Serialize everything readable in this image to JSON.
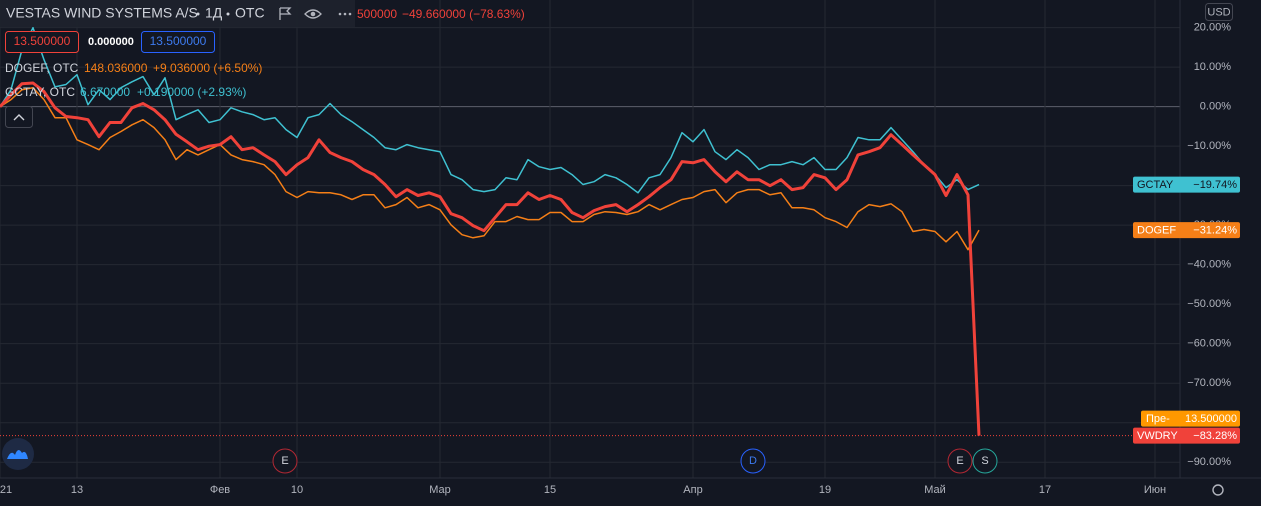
{
  "chart_data": {
    "type": "line",
    "header": {
      "title": "VESTAS WIND SYSTEMS A/S",
      "interval": "1Д",
      "exchange": "OTC",
      "price_tail": "500000",
      "change": "−49.660000 (−78.63%)",
      "buttons": [
        "13.500000",
        "0.000000",
        "13.500000"
      ]
    },
    "legend_rows": [
      {
        "symbol": "DOGEF, OTC",
        "price": "148.036000",
        "change": "+9.036000 (+6.50%)"
      },
      {
        "symbol": "GCTAY, OTC",
        "price": "6.670000",
        "change": "+0.190000 (+2.93%)"
      }
    ],
    "y_unit": "USD",
    "premarket": {
      "label": "Пре-",
      "price": "13.500000"
    },
    "events": [
      "E",
      "D",
      "E",
      "S"
    ],
    "categories": [
      "21",
      null,
      null,
      null,
      null,
      null,
      null,
      "13",
      null,
      null,
      null,
      null,
      null,
      null,
      null,
      null,
      null,
      null,
      null,
      null,
      "Фев",
      null,
      null,
      null,
      null,
      null,
      null,
      "10",
      null,
      null,
      null,
      null,
      null,
      null,
      null,
      null,
      null,
      null,
      null,
      null,
      "Мар",
      null,
      null,
      null,
      null,
      null,
      null,
      null,
      null,
      null,
      "15",
      null,
      null,
      null,
      null,
      null,
      null,
      null,
      null,
      null,
      null,
      null,
      null,
      "Апр",
      null,
      null,
      null,
      null,
      null,
      null,
      null,
      null,
      null,
      null,
      null,
      "19",
      null,
      null,
      null,
      null,
      null,
      null,
      null,
      null,
      null,
      "Май",
      null,
      null,
      null,
      null,
      null,
      null,
      null,
      null,
      null,
      "17",
      null,
      null,
      null,
      null,
      null,
      null,
      null,
      null,
      null,
      "Июн",
      null
    ],
    "series": [
      {
        "name": "DOGEF",
        "color": "#f57f17",
        "last_label": "−31.24%",
        "values": [
          0,
          1.8,
          4.3,
          4.8,
          1.8,
          -2.8,
          -2.8,
          -8.4,
          -9.6,
          -10.9,
          -7.8,
          -6.3,
          -4.6,
          -3.3,
          -5.3,
          -8.4,
          -13.4,
          -10.9,
          -12.2,
          -10.9,
          -9.6,
          -12.2,
          -13.4,
          -13.9,
          -14.7,
          -17.2,
          -21.5,
          -23,
          -21.5,
          -21.8,
          -21.8,
          -22.3,
          -23.5,
          -22.3,
          -22.3,
          -25.6,
          -24.8,
          -23,
          -25.6,
          -24.8,
          -26.1,
          -29.9,
          -32.4,
          -33.2,
          -32.7,
          -29.1,
          -29.1,
          -27.8,
          -28.6,
          -28.6,
          -26.8,
          -26.8,
          -29.1,
          -29.1,
          -27.3,
          -26.6,
          -26.8,
          -27.3,
          -26.6,
          -24.8,
          -26.1,
          -24.8,
          -23.5,
          -23,
          -21.5,
          -21,
          -24.3,
          -21.8,
          -21,
          -21,
          -22.3,
          -21.8,
          -25.6,
          -25.6,
          -26.1,
          -28.1,
          -29.1,
          -30.6,
          -26.6,
          -24.8,
          -25.3,
          -24.6,
          -26.6,
          -31.6,
          -31.1,
          -31.6,
          -34.2,
          -31.6,
          -36.2,
          -31.24,
          null,
          null,
          null,
          null,
          null,
          null,
          null,
          null,
          null,
          null,
          null,
          null,
          null,
          null,
          null,
          null,
          null
        ]
      },
      {
        "name": "GCTAY",
        "color": "#3fc1d1",
        "last_label": "−19.74%",
        "values": [
          0,
          4.3,
          14.4,
          20,
          11.9,
          5,
          5.6,
          8.1,
          0.5,
          4.3,
          1.8,
          4.8,
          6.3,
          7.6,
          3,
          7.3,
          -3.3,
          -2,
          -0.8,
          -4,
          -3.3,
          -0.3,
          -1.3,
          -2,
          -3.3,
          -2.8,
          -5.8,
          -7.8,
          -2.8,
          -2,
          0.8,
          -2,
          -3.8,
          -5.8,
          -7.8,
          -10.4,
          -10.9,
          -9.6,
          -10.4,
          -10.9,
          -11.4,
          -17.2,
          -18.5,
          -21,
          -21.5,
          -21,
          -18,
          -18.5,
          -13.4,
          -15.2,
          -15.9,
          -15.4,
          -17.2,
          -19.7,
          -19,
          -17.2,
          -18,
          -19.7,
          -21.8,
          -18,
          -17.2,
          -12.9,
          -6.6,
          -8.9,
          -5.8,
          -11.4,
          -13.4,
          -10.9,
          -12.9,
          -15.9,
          -14.7,
          -14.7,
          -13.9,
          -14.7,
          -12.9,
          -15.9,
          -15.9,
          -12.9,
          -7.8,
          -8.4,
          -8.4,
          -5.3,
          -8.4,
          -11.4,
          -14.7,
          -17.2,
          -20.5,
          -18.5,
          -21,
          -19.74,
          null,
          null,
          null,
          null,
          null,
          null,
          null,
          null,
          null,
          null,
          null,
          null,
          null,
          null,
          null,
          null,
          null
        ]
      },
      {
        "name": "VWDRY",
        "color": "#f0423a",
        "last_label": "−83.28%",
        "values": [
          0,
          3,
          5.8,
          6,
          3.8,
          -0.3,
          -2.5,
          -2.8,
          -3.3,
          -7.6,
          -4,
          -4,
          -0.3,
          0.8,
          -0.8,
          -3.3,
          -7,
          -8.9,
          -10.9,
          -10,
          -9.6,
          -7.6,
          -10.9,
          -10.4,
          -12.2,
          -13.9,
          -17.2,
          -14.7,
          -12.9,
          -8.4,
          -11.6,
          -12.9,
          -13.9,
          -15.9,
          -17.2,
          -19.7,
          -22.8,
          -21,
          -22.5,
          -21.8,
          -22.8,
          -27.1,
          -28.1,
          -30.1,
          -31.4,
          -28.1,
          -24.8,
          -24.8,
          -21.8,
          -23.5,
          -22.5,
          -23.5,
          -26.8,
          -28.1,
          -26.3,
          -25.3,
          -24.8,
          -26.6,
          -24.8,
          -22.8,
          -20.5,
          -18.5,
          -13.9,
          -14.2,
          -13.4,
          -16.5,
          -19,
          -16.5,
          -18.5,
          -18.5,
          -20,
          -18.5,
          -21,
          -20.5,
          -17.2,
          -18,
          -21,
          -18.5,
          -12.2,
          -11.4,
          -10.4,
          -7.1,
          -9.6,
          -12.2,
          -14.7,
          -17.2,
          -22.5,
          -17.2,
          -22.3,
          -83.28,
          null,
          null,
          null,
          null,
          null,
          null,
          null,
          null,
          null,
          null,
          null,
          null,
          null,
          null,
          null,
          null,
          null
        ]
      }
    ],
    "ylim": [
      -94,
      27
    ],
    "yticks": [
      {
        "value": 20,
        "label": "20.00%"
      },
      {
        "value": 10,
        "label": "10.00%"
      },
      {
        "value": 0,
        "label": "0.00%"
      },
      {
        "value": -10,
        "label": "−10.00%"
      },
      {
        "value": -20,
        "label": "−20.00%"
      },
      {
        "value": -30,
        "label": "−30.00%"
      },
      {
        "value": -40,
        "label": "−40.00%"
      },
      {
        "value": -50,
        "label": "−50.00%"
      },
      {
        "value": -60,
        "label": "−60.00%"
      },
      {
        "value": -70,
        "label": "−70.00%"
      },
      {
        "value": -80,
        "label": "−80.00%"
      },
      {
        "value": -90,
        "label": "−90.00%"
      }
    ],
    "grid": true
  }
}
